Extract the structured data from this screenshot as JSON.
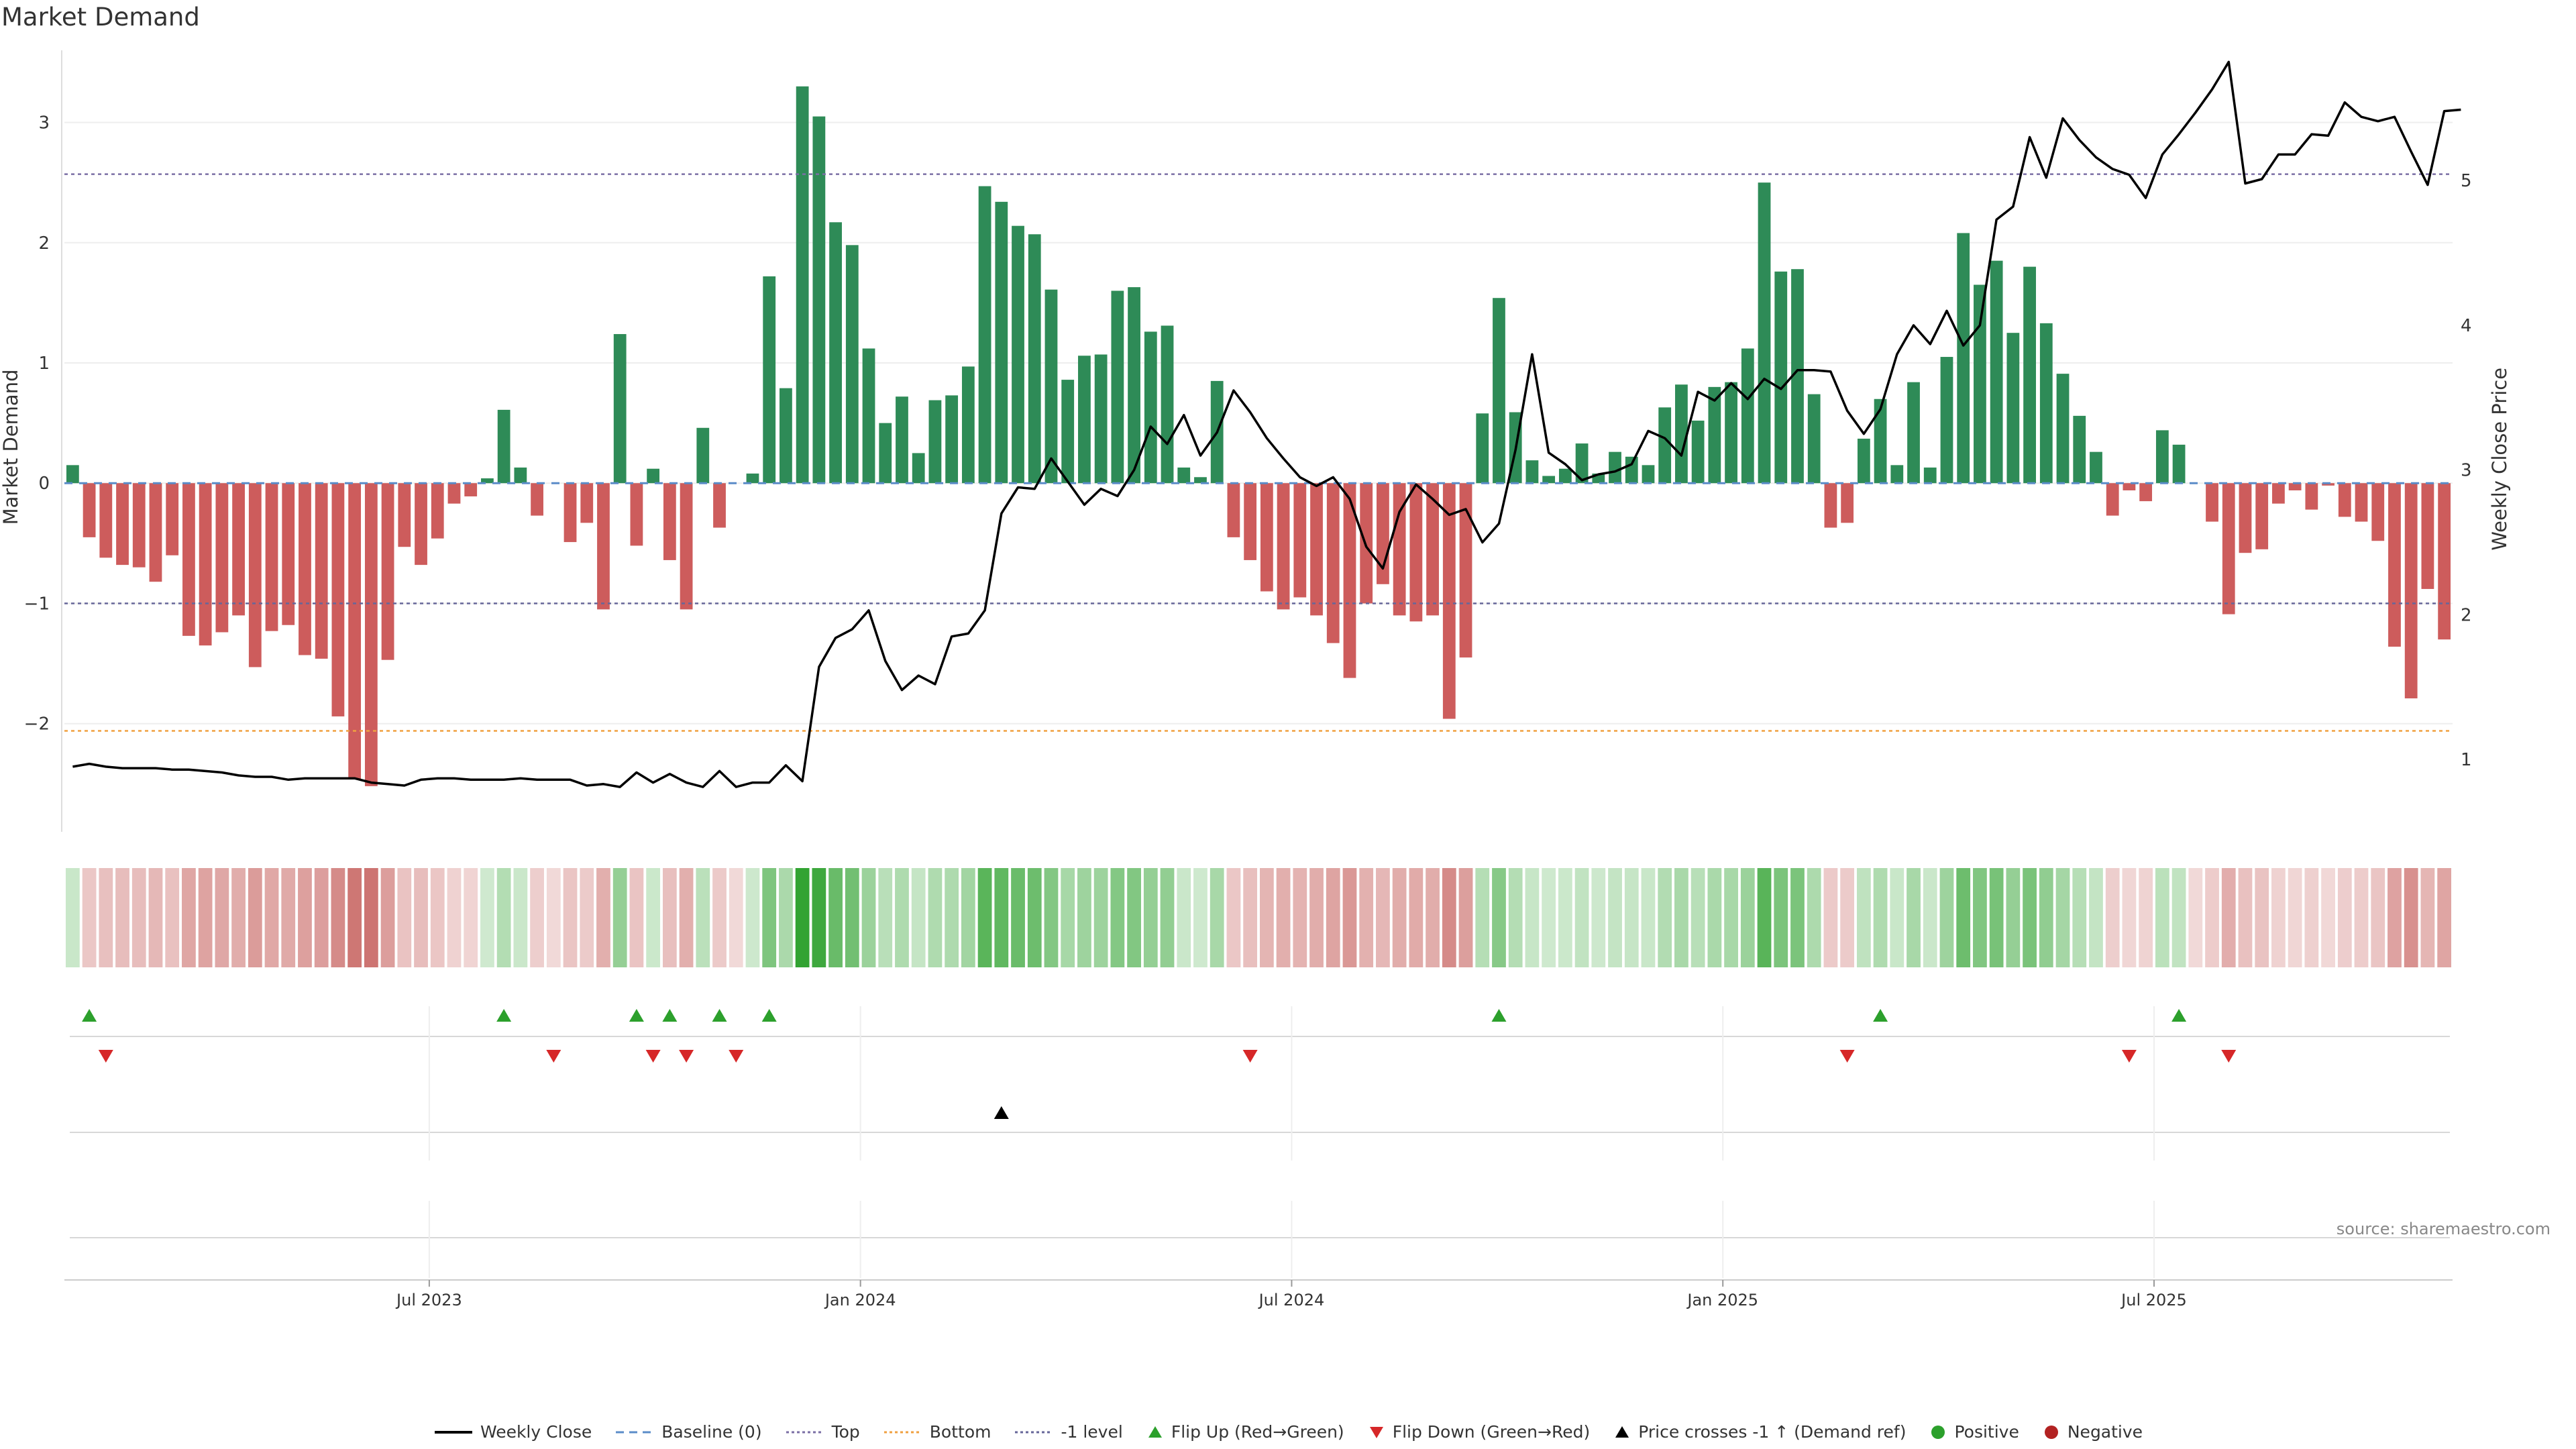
{
  "title": "Market Demand",
  "source": "source: sharemaestro.com",
  "colors": {
    "positive": "#2e8b57",
    "negative": "#cd5c5c",
    "price": "#000000",
    "top": "#7b6fa5",
    "bottom": "#f0a040",
    "flip_up": "#2ca02c",
    "flip_down": "#d62728"
  },
  "chart_data": {
    "type": "bar",
    "title": "Market Demand",
    "ylabel": "Market Demand",
    "y2label": "Weekly Close Price",
    "ylim": [
      -2.9,
      3.6
    ],
    "y2lim": [
      0.5,
      5.9
    ],
    "yticks": [
      -2,
      -1,
      0,
      1,
      2,
      3
    ],
    "y2ticks": [
      1,
      2,
      3,
      4,
      5
    ],
    "xtick_labels": [
      "Jul 2023",
      "Jan 2024",
      "Jul 2024",
      "Jan 2025",
      "Jul 2025"
    ],
    "xtick_index": [
      22,
      48,
      74,
      100,
      126
    ],
    "reference_lines": [
      {
        "name": "Top",
        "value": 2.57
      },
      {
        "name": "Bottom",
        "value": -2.06
      },
      {
        "name": "-1 level",
        "value": -1.0
      }
    ],
    "series": [
      {
        "name": "Market Demand",
        "values": [
          0.15,
          -0.45,
          -0.62,
          -0.68,
          -0.7,
          -0.82,
          -0.6,
          -1.27,
          -1.35,
          -1.24,
          -1.1,
          -1.53,
          -1.23,
          -1.18,
          -1.43,
          -1.46,
          -1.94,
          -2.46,
          -2.52,
          -1.47,
          -0.53,
          -0.68,
          -0.46,
          -0.17,
          -0.11,
          0.04,
          0.61,
          0.13,
          -0.27,
          0,
          -0.49,
          -0.33,
          -1.05,
          1.24,
          -0.52,
          0.12,
          -0.64,
          -1.05,
          0.46,
          -0.37,
          0,
          0.08,
          1.72,
          0.79,
          3.3,
          3.05,
          2.17,
          1.98,
          1.12,
          0.5,
          0.72,
          0.25,
          0.69,
          0.73,
          0.97,
          2.47,
          2.34,
          2.14,
          2.07,
          1.61,
          0.86,
          1.06,
          1.07,
          1.6,
          1.63,
          1.26,
          1.31,
          0.13,
          0.05,
          0.85,
          -0.45,
          -0.64,
          -0.9,
          -1.05,
          -0.95,
          -1.1,
          -1.33,
          -1.62,
          -1.0,
          -0.84,
          -1.1,
          -1.15,
          -1.1,
          -1.96,
          -1.45,
          0.58,
          1.54,
          0.59,
          0.19,
          0.06,
          0.12,
          0.33,
          0.08,
          0.26,
          0.22,
          0.15,
          0.63,
          0.82,
          0.52,
          0.8,
          0.84,
          1.12,
          2.5,
          1.76,
          1.78,
          0.74,
          -0.37,
          -0.33,
          0.37,
          0.7,
          0.15,
          0.84,
          0.13,
          1.05,
          2.08,
          1.65,
          1.85,
          1.25,
          1.8,
          1.33,
          0.91,
          0.56,
          0.26,
          -0.27,
          -0.06,
          -0.15,
          0.44,
          0.32,
          0,
          -0.32,
          -1.09,
          -0.58,
          -0.55,
          -0.17,
          -0.06,
          -0.22,
          -0.02,
          -0.28,
          -0.32,
          -0.48,
          -1.36,
          -1.79,
          -0.88,
          -1.3
        ]
      },
      {
        "name": "Weekly Close",
        "values": [
          0.95,
          0.97,
          0.95,
          0.94,
          0.94,
          0.94,
          0.93,
          0.93,
          0.92,
          0.91,
          0.89,
          0.88,
          0.88,
          0.86,
          0.87,
          0.87,
          0.87,
          0.87,
          0.84,
          0.83,
          0.82,
          0.86,
          0.87,
          0.87,
          0.86,
          0.86,
          0.86,
          0.87,
          0.86,
          0.86,
          0.86,
          0.82,
          0.83,
          0.81,
          0.91,
          0.84,
          0.9,
          0.84,
          0.81,
          0.92,
          0.81,
          0.84,
          0.84,
          0.96,
          0.85,
          1.64,
          1.84,
          1.9,
          2.03,
          1.68,
          1.48,
          1.58,
          1.52,
          1.85,
          1.87,
          2.03,
          2.7,
          2.88,
          2.87,
          3.08,
          2.92,
          2.76,
          2.87,
          2.82,
          3.0,
          3.3,
          3.18,
          3.38,
          3.1,
          3.26,
          3.55,
          3.4,
          3.22,
          3.08,
          2.95,
          2.89,
          2.95,
          2.8,
          2.47,
          2.32,
          2.71,
          2.9,
          2.8,
          2.69,
          2.73,
          2.5,
          2.63,
          3.14,
          3.8,
          3.12,
          3.04,
          2.93,
          2.97,
          2.99,
          3.04,
          3.27,
          3.22,
          3.1,
          3.54,
          3.48,
          3.6,
          3.49,
          3.63,
          3.56,
          3.69,
          3.69,
          3.68,
          3.41,
          3.25,
          3.42,
          3.8,
          4.0,
          3.87,
          4.1,
          3.86,
          4.0,
          4.73,
          4.82,
          5.3,
          5.02,
          5.43,
          5.28,
          5.16,
          5.08,
          5.04,
          4.88,
          5.18,
          5.32,
          5.47,
          5.63,
          5.82,
          4.98,
          5.01,
          5.18,
          5.18,
          5.32,
          5.31,
          5.54,
          5.44,
          5.41,
          5.44,
          5.2,
          4.97,
          5.48,
          5.49
        ]
      }
    ],
    "flip_up_index": [
      1,
      26,
      34,
      36,
      39,
      42,
      86,
      109,
      127
    ],
    "flip_down_index": [
      2,
      29,
      35,
      37,
      40,
      71,
      107,
      124,
      130
    ],
    "price_cross_index": [
      56
    ],
    "legend": [
      {
        "label": "Weekly Close",
        "kind": "line",
        "color": "#000000"
      },
      {
        "label": "Baseline (0)",
        "kind": "dash",
        "color": "#5b8cc8"
      },
      {
        "label": "Top",
        "kind": "dot",
        "color": "#7b6fa5"
      },
      {
        "label": "Bottom",
        "kind": "dot",
        "color": "#f0a040"
      },
      {
        "label": "-1 level",
        "kind": "dot",
        "color": "#666699"
      },
      {
        "label": "Flip Up (Red→Green)",
        "kind": "tri-up",
        "color": "#2ca02c"
      },
      {
        "label": "Flip Down (Green→Red)",
        "kind": "tri-down",
        "color": "#d62728"
      },
      {
        "label": "Price crosses -1 ↑ (Demand ref)",
        "kind": "tri-up",
        "color": "#000000"
      },
      {
        "label": "Positive",
        "kind": "circle",
        "color": "#2ca02c"
      },
      {
        "label": "Negative",
        "kind": "circle",
        "color": "#b22222"
      }
    ]
  }
}
